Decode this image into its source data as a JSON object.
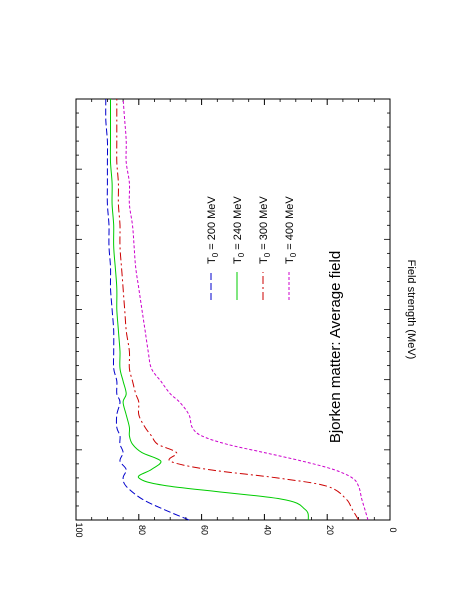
{
  "chart_data": {
    "type": "line",
    "title": "",
    "xlabel": "",
    "ylabel": "Field strength (MeV)",
    "ylim": [
      0,
      100
    ],
    "yticks": [
      0,
      20,
      40,
      60,
      80,
      100
    ],
    "grid": false,
    "legend_position": "center",
    "annotation": "Bjorken matter: Average field",
    "x": [
      0,
      0.025,
      0.05,
      0.08,
      0.1,
      0.12,
      0.14,
      0.16,
      0.18,
      0.2,
      0.22,
      0.25,
      0.28,
      0.3,
      0.33,
      0.36,
      0.4,
      0.45,
      0.5,
      0.55,
      0.6,
      0.65,
      0.7,
      0.75,
      0.8,
      0.85,
      0.9,
      0.95,
      1
    ],
    "series": [
      {
        "name": "T0 = 200 MeV",
        "color": "#0000cc",
        "dash": "7,3",
        "values": [
          64,
          72,
          79,
          84,
          85,
          84,
          86,
          85,
          86,
          86,
          87,
          87,
          86,
          87,
          87,
          88,
          88,
          88,
          88.5,
          89,
          89,
          89.5,
          89.5,
          90,
          90,
          90,
          90,
          90.5,
          90.5
        ]
      },
      {
        "name": "T0 = 240 MeV",
        "color": "#00cc00",
        "dash": "",
        "values": [
          26,
          27,
          35,
          70,
          80,
          76,
          73,
          79,
          82,
          83,
          83,
          84,
          85,
          84,
          85,
          86,
          86,
          86.5,
          87,
          87,
          87.5,
          88,
          88,
          88.5,
          88.5,
          89,
          89,
          89,
          89
        ]
      },
      {
        "name": "T0 = 300 MeV",
        "color": "#cc0000",
        "dash": "8,3,2,3",
        "values": [
          10,
          12,
          14,
          20,
          36,
          58,
          70,
          68,
          74,
          76,
          78,
          80,
          80,
          81,
          82,
          83,
          83,
          84,
          84.5,
          85,
          85.5,
          86,
          86,
          86.5,
          86.5,
          87,
          87,
          87,
          87
        ]
      },
      {
        "name": "T0 = 400 MeV",
        "color": "#cc00cc",
        "dash": "3,2",
        "values": [
          7,
          8,
          9,
          10,
          12,
          18,
          28,
          40,
          52,
          60,
          63,
          64,
          67,
          70,
          73,
          76,
          77,
          78,
          79,
          80,
          81,
          81.5,
          82,
          83,
          83,
          84,
          84,
          84.5,
          85
        ]
      }
    ],
    "legend": [
      {
        "label_base": "T",
        "label_sub": "0",
        "label_rest": " = 200 MeV",
        "color": "#0000cc",
        "dash": "7,3"
      },
      {
        "label_base": "T",
        "label_sub": "0",
        "label_rest": " = 240 MeV",
        "color": "#00cc00",
        "dash": ""
      },
      {
        "label_base": "T",
        "label_sub": "0",
        "label_rest": " = 300 MeV",
        "color": "#cc0000",
        "dash": "8,3,2,3"
      },
      {
        "label_base": "T",
        "label_sub": "0",
        "label_rest": " = 400 MeV",
        "color": "#cc00cc",
        "dash": "3,2"
      }
    ]
  }
}
